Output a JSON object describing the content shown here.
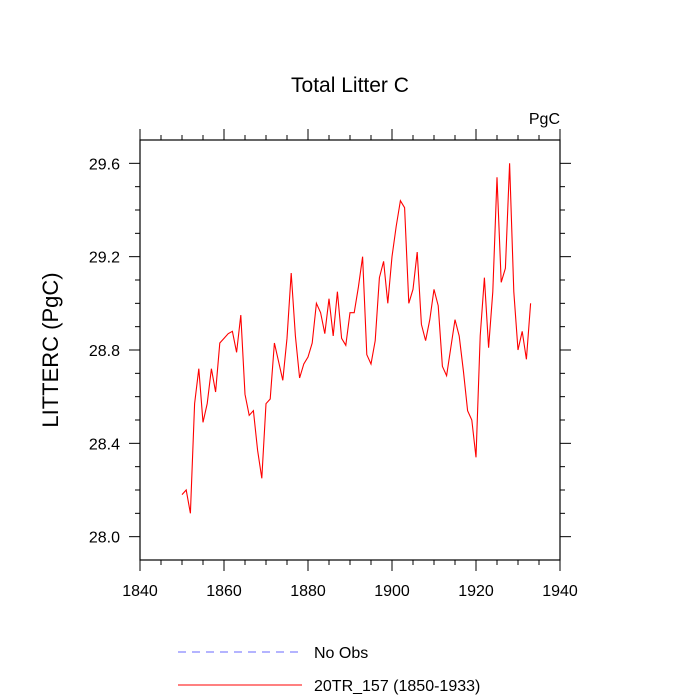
{
  "chart_data": {
    "type": "line",
    "title": "Total Litter C",
    "units_label": "PgC",
    "ylabel": "LITTERC  (PgC)",
    "xlabel": "",
    "xlim": [
      1840,
      1940
    ],
    "ylim": [
      27.9,
      29.7
    ],
    "x_ticks": [
      1840,
      1860,
      1880,
      1900,
      1920,
      1940
    ],
    "y_ticks": [
      28.0,
      28.4,
      28.8,
      29.2,
      29.6
    ],
    "x_tick_labels": [
      "1840",
      "1860",
      "1880",
      "1900",
      "1920",
      "1940"
    ],
    "y_tick_labels": [
      "28.0",
      "28.4",
      "28.8",
      "29.2",
      "29.6"
    ],
    "grid": false,
    "legend_position": "bottom",
    "series": [
      {
        "name": "No Obs",
        "color": "#6a6aff",
        "dash": true,
        "x": [],
        "y": []
      },
      {
        "name": "20TR_157 (1850-1933)",
        "color": "#ff0000",
        "dash": false,
        "x": [
          1850,
          1851,
          1852,
          1853,
          1854,
          1855,
          1856,
          1857,
          1858,
          1859,
          1860,
          1861,
          1862,
          1863,
          1864,
          1865,
          1866,
          1867,
          1868,
          1869,
          1870,
          1871,
          1872,
          1873,
          1874,
          1875,
          1876,
          1877,
          1878,
          1879,
          1880,
          1881,
          1882,
          1883,
          1884,
          1885,
          1886,
          1887,
          1888,
          1889,
          1890,
          1891,
          1892,
          1893,
          1894,
          1895,
          1896,
          1897,
          1898,
          1899,
          1900,
          1901,
          1902,
          1903,
          1904,
          1905,
          1906,
          1907,
          1908,
          1909,
          1910,
          1911,
          1912,
          1913,
          1914,
          1915,
          1916,
          1917,
          1918,
          1919,
          1920,
          1921,
          1922,
          1923,
          1924,
          1925,
          1926,
          1927,
          1928,
          1929,
          1930,
          1931,
          1932,
          1933
        ],
        "y": [
          28.18,
          28.2,
          28.1,
          28.57,
          28.72,
          28.49,
          28.57,
          28.72,
          28.62,
          28.83,
          28.85,
          28.87,
          28.88,
          28.79,
          28.95,
          28.61,
          28.52,
          28.54,
          28.37,
          28.25,
          28.57,
          28.59,
          28.83,
          28.75,
          28.67,
          28.85,
          29.13,
          28.86,
          28.68,
          28.74,
          28.77,
          28.83,
          29.0,
          28.96,
          28.87,
          29.02,
          28.86,
          29.05,
          28.85,
          28.82,
          28.96,
          28.96,
          29.07,
          29.2,
          28.78,
          28.74,
          28.84,
          29.11,
          29.18,
          29.0,
          29.2,
          29.33,
          29.44,
          29.41,
          29.0,
          29.06,
          29.22,
          28.91,
          28.84,
          28.93,
          29.06,
          28.99,
          28.73,
          28.69,
          28.81,
          28.93,
          28.86,
          28.71,
          28.54,
          28.5,
          28.34,
          28.86,
          29.11,
          28.81,
          29.05,
          29.54,
          29.09,
          29.15,
          29.6,
          29.05,
          28.8,
          28.88,
          28.76,
          29.0
        ]
      }
    ]
  }
}
